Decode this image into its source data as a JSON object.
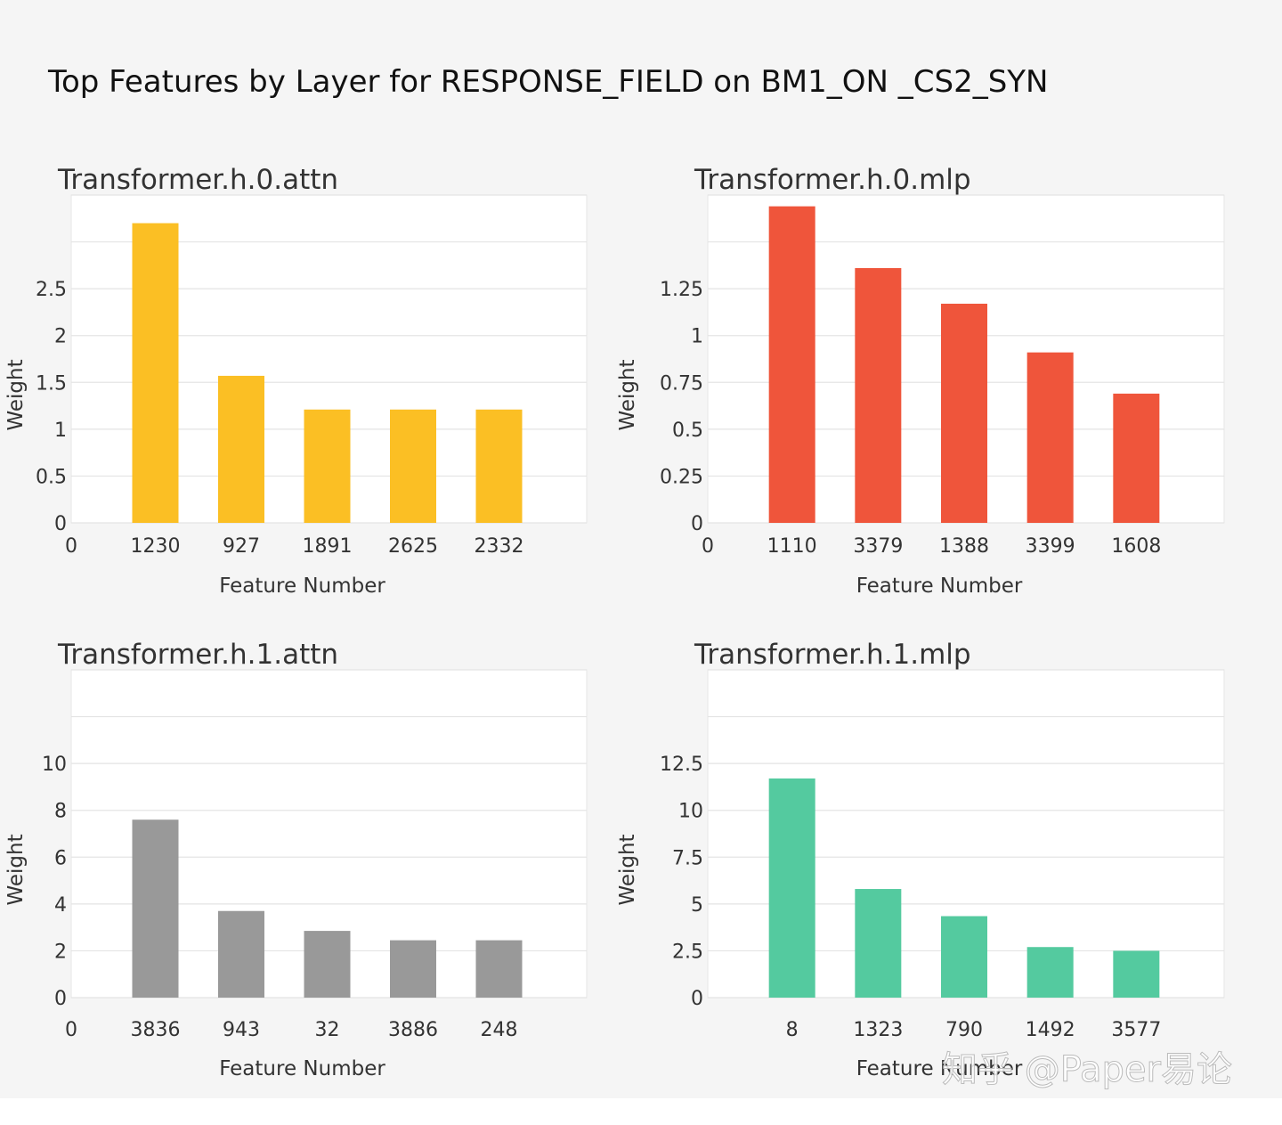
{
  "page_title": "Top Features by Layer for RESPONSE_FIELD on BM1_ON _CS2_SYN",
  "watermark": "知乎 @Paper易论",
  "chart_data": [
    {
      "type": "bar",
      "title": "Transformer.h.0.attn",
      "xlabel": "Feature Number",
      "ylabel": "Weight",
      "categories": [
        "1230",
        "927",
        "1891",
        "2625",
        "2332"
      ],
      "values": [
        3.2,
        1.57,
        1.21,
        1.21,
        1.21
      ],
      "ylim": [
        0,
        3.5
      ],
      "yticks": [
        0,
        0.5,
        1,
        1.5,
        2,
        2.5
      ],
      "ytick_labels": [
        "0",
        "0.5",
        "1",
        "1.5",
        "2",
        "2.5"
      ],
      "x_origin_label": "0",
      "color": "#fbbf24"
    },
    {
      "type": "bar",
      "title": "Transformer.h.0.mlp",
      "xlabel": "Feature Number",
      "ylabel": "Weight",
      "categories": [
        "1110",
        "3379",
        "1388",
        "3399",
        "1608"
      ],
      "values": [
        1.69,
        1.36,
        1.17,
        0.91,
        0.69
      ],
      "ylim": [
        0,
        1.75
      ],
      "yticks": [
        0,
        0.25,
        0.5,
        0.75,
        1,
        1.25
      ],
      "ytick_labels": [
        "0",
        "0.25",
        "0.5",
        "0.75",
        "1",
        "1.25"
      ],
      "x_origin_label": "0",
      "color": "#ef553b"
    },
    {
      "type": "bar",
      "title": "Transformer.h.1.attn",
      "xlabel": "Feature Number",
      "ylabel": "Weight",
      "categories": [
        "3836",
        "943",
        "32",
        "3886",
        "248"
      ],
      "values": [
        7.6,
        3.7,
        2.85,
        2.45,
        2.45
      ],
      "ylim": [
        0,
        14
      ],
      "yticks": [
        0,
        2,
        4,
        6,
        8,
        10
      ],
      "ytick_labels": [
        "0",
        "2",
        "4",
        "6",
        "8",
        "10"
      ],
      "x_origin_label": "0",
      "color": "#999999"
    },
    {
      "type": "bar",
      "title": "Transformer.h.1.mlp",
      "xlabel": "Feature Number",
      "ylabel": "Weight",
      "categories": [
        "8",
        "1323",
        "790",
        "1492",
        "3577"
      ],
      "values": [
        11.7,
        5.8,
        4.35,
        2.7,
        2.5
      ],
      "ylim": [
        0,
        17.5
      ],
      "yticks": [
        0,
        2.5,
        5,
        7.5,
        10,
        12.5
      ],
      "ytick_labels": [
        "0",
        "2.5",
        "5",
        "7.5",
        "10",
        "12.5"
      ],
      "x_origin_label": "",
      "color": "#54ca9f"
    }
  ]
}
